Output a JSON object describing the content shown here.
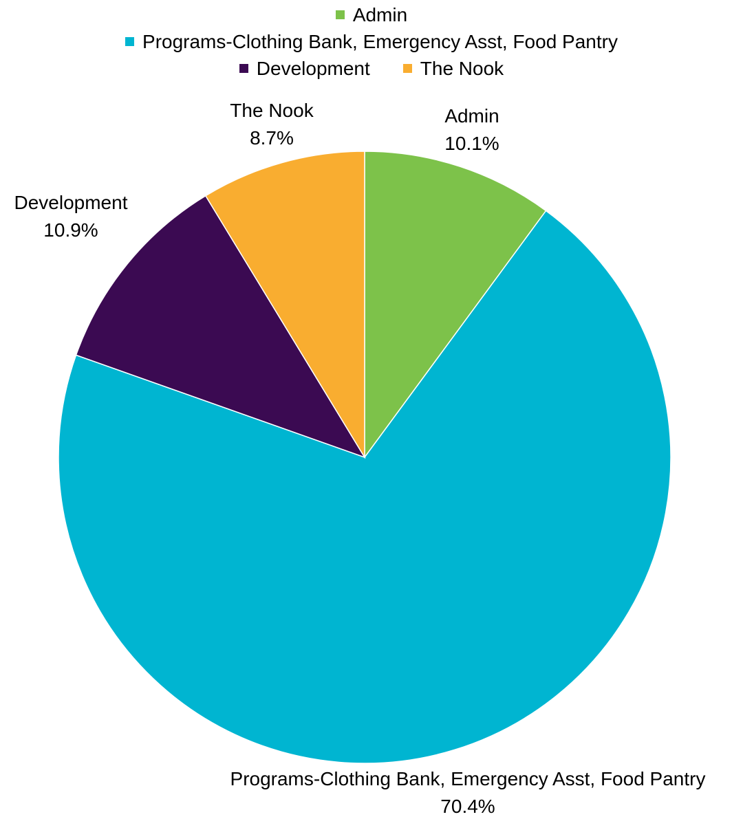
{
  "chart_data": {
    "type": "pie",
    "categories": [
      "Admin",
      "Programs-Clothing Bank, Emergency Asst, Food Pantry",
      "Development",
      "The Nook"
    ],
    "values": [
      10.1,
      70.4,
      10.9,
      8.7
    ],
    "value_labels": [
      "10.1%",
      "70.4%",
      "10.9%",
      "8.7%"
    ],
    "colors": [
      "#7dc24a",
      "#00b5d1",
      "#3b0a52",
      "#f9ad30"
    ],
    "start_angle_deg": 0,
    "direction": "clockwise",
    "legend_position": "top",
    "title": ""
  },
  "legend": {
    "rows": [
      [
        0
      ],
      [
        1
      ],
      [
        2,
        3
      ]
    ]
  }
}
